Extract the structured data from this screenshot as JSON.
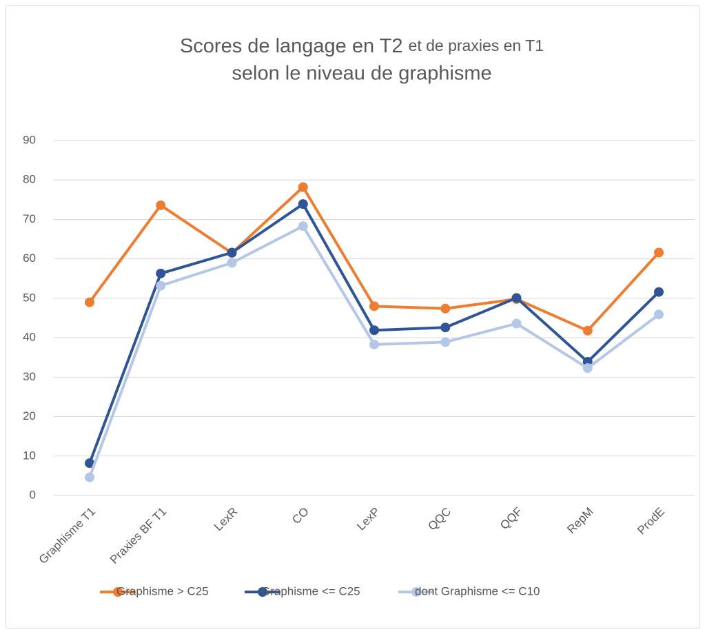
{
  "chart_data": {
    "type": "line",
    "title": [
      "Scores de langage en T2",
      "et de praxies en T1",
      "selon le niveau de graphisme"
    ],
    "categories": [
      "Graphisme T1",
      "Praxies BF T1",
      "LexR",
      "CO",
      "LexP",
      "QQC",
      "QQF",
      "RepM",
      "ProdE"
    ],
    "series": [
      {
        "name": "Graphisme > C25",
        "color": "#ED7D31",
        "values": [
          49,
          73.6,
          61.5,
          78.2,
          48,
          47.4,
          49.8,
          41.8,
          61.6
        ]
      },
      {
        "name": "Graphisme <= C25",
        "color": "#2F5597",
        "values": [
          8.2,
          56.3,
          61.6,
          73.9,
          41.9,
          42.6,
          50.1,
          33.9,
          51.6
        ]
      },
      {
        "name": "dont Graphisme <= C10",
        "color": "#B4C7E7",
        "values": [
          4.6,
          53.2,
          59,
          68.3,
          38.3,
          38.9,
          43.6,
          32.3,
          45.9
        ]
      }
    ],
    "ylim": [
      0,
      90
    ],
    "yticks": [
      0,
      10,
      20,
      30,
      40,
      50,
      60,
      70,
      80,
      90
    ],
    "grid": true,
    "legend": "bottom"
  }
}
